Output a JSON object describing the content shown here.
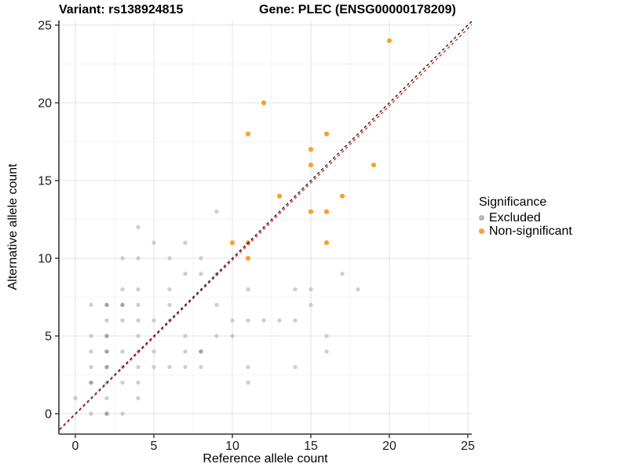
{
  "title_left": "Variant: rs138924815",
  "title_right": "Gene: PLEC (ENSG00000178209)",
  "chart_data": {
    "type": "scatter",
    "title": "Variant: rs138924815   Gene: PLEC (ENSG00000178209)",
    "xlabel": "Reference allele count",
    "ylabel": "Alternative allele count",
    "xlim": [
      0,
      25
    ],
    "ylim": [
      0,
      25
    ],
    "xticks": [
      0,
      5,
      10,
      15,
      20,
      25
    ],
    "yticks": [
      0,
      5,
      10,
      15,
      20,
      25
    ],
    "grid": "major and minor gridlines, white panel",
    "legend": {
      "title": "Significance",
      "position": "right",
      "items": [
        {
          "label": "Excluded",
          "color": "#b5b5b5"
        },
        {
          "label": "Non-significant",
          "color": "#f8a02c"
        }
      ]
    },
    "series": [
      {
        "name": "Excluded",
        "color": "#bdbdbd",
        "dark_color": "#9e9e9e",
        "points": [
          [
            1,
            0
          ],
          [
            2,
            0,
            2
          ],
          [
            3,
            0
          ],
          [
            0,
            1
          ],
          [
            2,
            1
          ],
          [
            4,
            1
          ],
          [
            1,
            2,
            2
          ],
          [
            2,
            2
          ],
          [
            3,
            2
          ],
          [
            4,
            2
          ],
          [
            11,
            2
          ],
          [
            1,
            3
          ],
          [
            2,
            3,
            2
          ],
          [
            3,
            3
          ],
          [
            4,
            3
          ],
          [
            5,
            3
          ],
          [
            6,
            3
          ],
          [
            7,
            3
          ],
          [
            8,
            3
          ],
          [
            11,
            3
          ],
          [
            14,
            3
          ],
          [
            1,
            4
          ],
          [
            2,
            4,
            2
          ],
          [
            3,
            4
          ],
          [
            4,
            4
          ],
          [
            5,
            4
          ],
          [
            7,
            4
          ],
          [
            8,
            4,
            2
          ],
          [
            16,
            4
          ],
          [
            1,
            5
          ],
          [
            2,
            5,
            2
          ],
          [
            4,
            5
          ],
          [
            7,
            5
          ],
          [
            9,
            5
          ],
          [
            10,
            5
          ],
          [
            16,
            5
          ],
          [
            2,
            6
          ],
          [
            3,
            6
          ],
          [
            4,
            6
          ],
          [
            5,
            6
          ],
          [
            6,
            6
          ],
          [
            10,
            6
          ],
          [
            11,
            6
          ],
          [
            12,
            6
          ],
          [
            13,
            6
          ],
          [
            14,
            6
          ],
          [
            1,
            7
          ],
          [
            2,
            7,
            2
          ],
          [
            3,
            7,
            2
          ],
          [
            4,
            7
          ],
          [
            6,
            7
          ],
          [
            9,
            7
          ],
          [
            15,
            7
          ],
          [
            3,
            8
          ],
          [
            4,
            8
          ],
          [
            6,
            8
          ],
          [
            11,
            8
          ],
          [
            14,
            8
          ],
          [
            15,
            8
          ],
          [
            18,
            8
          ],
          [
            7,
            9
          ],
          [
            8,
            9
          ],
          [
            9,
            9
          ],
          [
            17,
            9
          ],
          [
            3,
            10
          ],
          [
            4,
            10
          ],
          [
            6,
            10
          ],
          [
            8,
            10
          ],
          [
            5,
            11
          ],
          [
            7,
            11
          ],
          [
            4,
            12
          ],
          [
            9,
            13
          ]
        ]
      },
      {
        "name": "Non-significant",
        "color": "#f8a02c",
        "points": [
          [
            11,
            10
          ],
          [
            10,
            11
          ],
          [
            11,
            11
          ],
          [
            16,
            11
          ],
          [
            15,
            13
          ],
          [
            16,
            13
          ],
          [
            13,
            14
          ],
          [
            17,
            14
          ],
          [
            15,
            16
          ],
          [
            19,
            16
          ],
          [
            15,
            17
          ],
          [
            11,
            18
          ],
          [
            16,
            18
          ],
          [
            12,
            20
          ],
          [
            20,
            24
          ]
        ]
      }
    ],
    "lines": [
      {
        "name": "identity",
        "color": "#1a1a1a",
        "dashed": true,
        "slope": 1.0,
        "intercept": 0.0
      },
      {
        "name": "fit",
        "color": "#e8251f",
        "dashed": true,
        "slope": 0.993,
        "intercept": -0.05
      }
    ]
  }
}
